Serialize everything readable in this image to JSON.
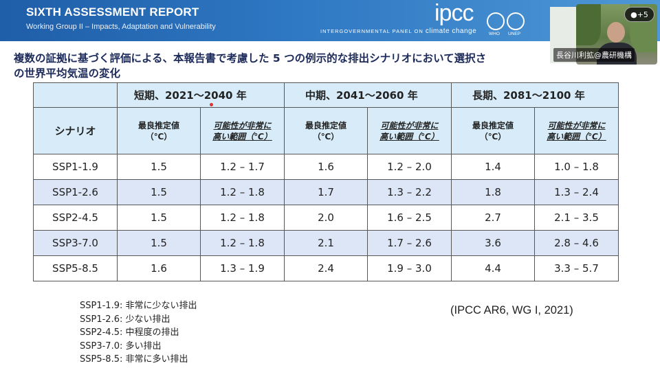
{
  "header": {
    "title": "SIXTH ASSESSMENT REPORT",
    "subtitle": "Working Group II – Impacts, Adaptation and Vulnerability",
    "logo": "ipcc",
    "tagline_prefix": "INTERGOVERNMENTAL PANEL ON",
    "tagline_suffix": "climate change",
    "org1": "WHO",
    "org2": "UNEP"
  },
  "meeting": {
    "participants_badge": "+5",
    "speaker_name": "長谷川利拡@農研機構"
  },
  "slide": {
    "heading_line1": "複数の証拠に基づく評価による、本報告書で考慮した 5 つの例示的な排出シナリオにおいて選択さ",
    "heading_line2": "の世界平均気温の変化",
    "table": {
      "scenario_header": "シナリオ",
      "periods": [
        "短期、2021～2040 年",
        "中期、2041～2060 年",
        "長期、2081～2100 年"
      ],
      "best_line1": "最良推定値",
      "best_line2": "（℃）",
      "range_line1": "可能性が非常に",
      "range_line2": "高い範囲（℃）",
      "rows": [
        {
          "scenario": "SSP1-1.9",
          "s_best": "1.5",
          "s_range": "1.2 – 1.7",
          "m_best": "1.6",
          "m_range": "1.2 – 2.0",
          "l_best": "1.4",
          "l_range": "1.0 – 1.8"
        },
        {
          "scenario": "SSP1-2.6",
          "s_best": "1.5",
          "s_range": "1.2 – 1.8",
          "m_best": "1.7",
          "m_range": "1.3 – 2.2",
          "l_best": "1.8",
          "l_range": "1.3 – 2.4"
        },
        {
          "scenario": "SSP2-4.5",
          "s_best": "1.5",
          "s_range": "1.2 – 1.8",
          "m_best": "2.0",
          "m_range": "1.6 – 2.5",
          "l_best": "2.7",
          "l_range": "2.1 – 3.5"
        },
        {
          "scenario": "SSP3-7.0",
          "s_best": "1.5",
          "s_range": "1.2 – 1.8",
          "m_best": "2.1",
          "m_range": "1.7 – 2.6",
          "l_best": "3.6",
          "l_range": "2.8 – 4.6"
        },
        {
          "scenario": "SSP5-8.5",
          "s_best": "1.6",
          "s_range": "1.3 – 1.9",
          "m_best": "2.4",
          "m_range": "1.9 – 3.0",
          "l_best": "4.4",
          "l_range": "3.3 – 5.7"
        }
      ]
    },
    "legend": [
      "SSP1-1.9: 非常に少ない排出",
      "SSP1-2.6: 少ない排出",
      "SSP2-4.5: 中程度の排出",
      "SSP3-7.0: 多い排出",
      "SSP5-8.5: 非常に多い排出"
    ],
    "citation": "(IPCC AR6, WG I, 2021)"
  },
  "colors": {
    "banner": "#2f78c3",
    "header_cell": "#d7ecf8",
    "row_alt": "#dde6f6",
    "heading_text": "#1c2a5a"
  }
}
